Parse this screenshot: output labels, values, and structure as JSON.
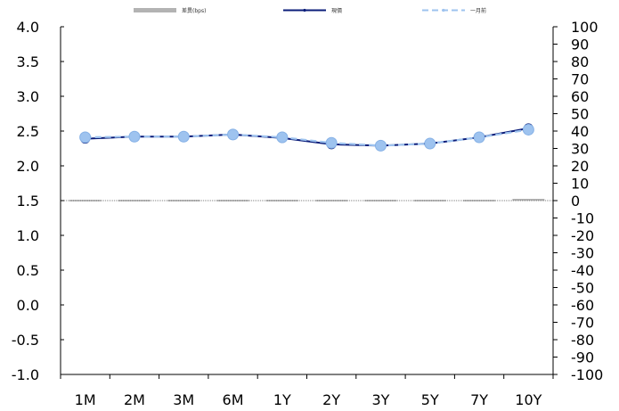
{
  "chart_data": {
    "type": "line",
    "categories": [
      "1M",
      "2M",
      "3M",
      "6M",
      "1Y",
      "2Y",
      "3Y",
      "5Y",
      "7Y",
      "10Y"
    ],
    "series": [
      {
        "name": "差異(bps)",
        "kind": "bar",
        "axis": "right",
        "color": "#b3b3b3",
        "values": [
          -0.2,
          0.1,
          0.0,
          0.0,
          0.7,
          -0.8,
          0.0,
          0.0,
          0.5,
          1.0
        ]
      },
      {
        "name": "現價",
        "kind": "line",
        "axis": "left",
        "color": "#0b1d7a",
        "values": [
          2.39,
          2.42,
          2.42,
          2.45,
          2.4,
          2.31,
          2.29,
          2.32,
          2.41,
          2.54
        ]
      },
      {
        "name": "一月前",
        "kind": "line",
        "axis": "left",
        "color": "#9ec3ef",
        "dashed": true,
        "values": [
          2.41,
          2.42,
          2.42,
          2.45,
          2.41,
          2.33,
          2.29,
          2.32,
          2.41,
          2.52
        ]
      }
    ],
    "left_axis": {
      "min": -1.0,
      "max": 4.0,
      "step": 0.5,
      "tick_labels": [
        "-1.0",
        "-0.5",
        "0.0",
        "0.5",
        "1.0",
        "1.5",
        "2.0",
        "2.5",
        "3.0",
        "3.5",
        "4.0"
      ]
    },
    "right_axis": {
      "min": -100,
      "max": 100,
      "step": 10,
      "tick_labels": [
        "-100",
        "-90",
        "-80",
        "-70",
        "-60",
        "-50",
        "-40",
        "-30",
        "-20",
        "-10",
        "0",
        "10",
        "20",
        "30",
        "40",
        "50",
        "60",
        "70",
        "80",
        "90",
        "100"
      ]
    },
    "title": "",
    "legend_position": "top",
    "grid": false
  }
}
